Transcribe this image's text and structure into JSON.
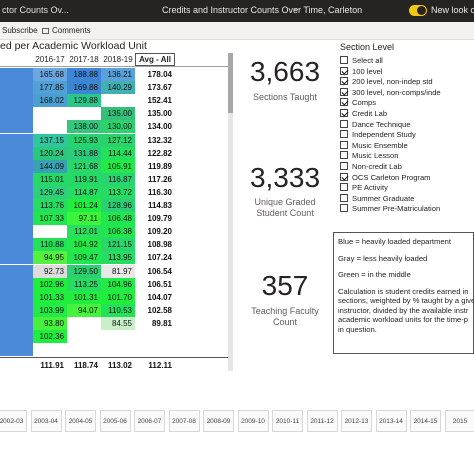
{
  "topbar": {
    "tab_label": "ctor Counts Ov...",
    "report_title": "Credits and Instructor Counts Over Time, Carleton",
    "new_look_label": "New look on"
  },
  "toolbar": {
    "subscribe_label": "Subscribe",
    "comments_label": "Comments"
  },
  "matrix": {
    "title": "ed per Academic Workload Unit",
    "columns": [
      "2016-17",
      "2017-18",
      "2018-19",
      "Avg - All"
    ],
    "rows": [
      {
        "cells": [
          "165.68",
          "188.88",
          "136.21"
        ],
        "colors": [
          "#6aa6e0",
          "#3d85d8",
          "#5aa2dc"
        ],
        "avg": "178.04",
        "lead": "#4b8ad8"
      },
      {
        "cells": [
          "177.85",
          "169.88",
          "140.29"
        ],
        "colors": [
          "#52a0d8",
          "#3b86d0",
          "#42b0b0"
        ],
        "avg": "173.67",
        "lead": "#4b8ad8"
      },
      {
        "cells": [
          "168.02",
          "129.88",
          ""
        ],
        "colors": [
          "#4aa0d2",
          "#27c88a",
          "#ffffff"
        ],
        "avg": "152.41",
        "lead": "#4b8ad8"
      },
      {
        "cells": [
          "",
          "",
          "135.00"
        ],
        "colors": [
          "#ffffff",
          "#ffffff",
          "#34c07a"
        ],
        "avg": "135.00",
        "lead": "#4b8ad8"
      },
      {
        "cells": [
          "",
          "138.00",
          "130.00"
        ],
        "colors": [
          "#ffffff",
          "#36c57c",
          "#2ed26c"
        ],
        "avg": "134.00",
        "lead": "#4b8ad8"
      },
      {
        "cells": [
          "137.15",
          "125.93",
          "127.12"
        ],
        "colors": [
          "#2fc6a0",
          "#25d46e",
          "#2ad26c"
        ],
        "avg": "132.32",
        "lead": "#4b8ad8"
      },
      {
        "cells": [
          "120.24",
          "131.88",
          "114.44"
        ],
        "colors": [
          "#2ac87c",
          "#28cc7a",
          "#25e05a"
        ],
        "avg": "122.82",
        "lead": "#4b8ad8"
      },
      {
        "cells": [
          "144.09",
          "121.68",
          "105.91"
        ],
        "colors": [
          "#36a2b2",
          "#28d66a",
          "#22ea46"
        ],
        "avg": "119.89",
        "lead": "#4b8ad8"
      },
      {
        "cells": [
          "115.01",
          "119.91",
          "116.87"
        ],
        "colors": [
          "#26d866",
          "#26d866",
          "#2ad470"
        ],
        "avg": "117.26",
        "lead": "#4b8ad8"
      },
      {
        "cells": [
          "129.45",
          "114.87",
          "113.72"
        ],
        "colors": [
          "#2ed07c",
          "#26dc62",
          "#26dc62"
        ],
        "avg": "116.30",
        "lead": "#4b8ad8"
      },
      {
        "cells": [
          "113.76",
          "101.24",
          "128.96"
        ],
        "colors": [
          "#28dc60",
          "#20ee3c",
          "#2ad072"
        ],
        "avg": "114.83",
        "lead": "#4b8ad8"
      },
      {
        "cells": [
          "107.33",
          "97.11",
          "106.48"
        ],
        "colors": [
          "#22e650",
          "#3cf43a",
          "#22e650"
        ],
        "avg": "109.79",
        "lead": "#4b8ad8"
      },
      {
        "cells": [
          "",
          "112.01",
          "106.38"
        ],
        "colors": [
          "#ffffff",
          "#28e05c",
          "#22e650"
        ],
        "avg": "109.20",
        "lead": "#4b8ad8"
      },
      {
        "cells": [
          "110.88",
          "104.92",
          "121.15"
        ],
        "colors": [
          "#24e258",
          "#22ea46",
          "#28d66a"
        ],
        "avg": "108.98",
        "lead": "#4b8ad8"
      },
      {
        "cells": [
          "94.95",
          "109.47",
          "113.95"
        ],
        "colors": [
          "#56f040",
          "#22e650",
          "#26dc62"
        ],
        "avg": "107.24",
        "lead": "#4b8ad8"
      },
      {
        "cells": [
          "92.73",
          "129.50",
          "81.97"
        ],
        "colors": [
          "#dcdcdc",
          "#2ad072",
          "#e8e8e8"
        ],
        "avg": "106.54",
        "lead": "#4b8ad8"
      },
      {
        "cells": [
          "102.96",
          "113.25",
          "104.96"
        ],
        "colors": [
          "#20ee3c",
          "#26dc62",
          "#22ea46"
        ],
        "avg": "106.51",
        "lead": "#4b8ad8"
      },
      {
        "cells": [
          "101.33",
          "101.31",
          "101.70"
        ],
        "colors": [
          "#20ee3c",
          "#20ee3c",
          "#20ee3c"
        ],
        "avg": "104.07",
        "lead": "#4b8ad8"
      },
      {
        "cells": [
          "103.99",
          "94.07",
          "110.53"
        ],
        "colors": [
          "#22ea46",
          "#46f23c",
          "#24e258"
        ],
        "avg": "102.58",
        "lead": "#4b8ad8"
      },
      {
        "cells": [
          "93.80",
          "",
          "84.55"
        ],
        "colors": [
          "#48f23c",
          "#ffffff",
          "#c8f0c8"
        ],
        "avg": "89.81",
        "lead": "#4b8ad8"
      },
      {
        "cells": [
          "102.36",
          "",
          ""
        ],
        "colors": [
          "#20ee3c",
          "#ffffff",
          "#ffffff"
        ],
        "avg": "",
        "lead": "#4b8ad8"
      },
      {
        "cells": [
          "",
          "",
          ""
        ],
        "colors": [
          "#ffffff",
          "#ffffff",
          "#ffffff"
        ],
        "avg": "",
        "lead": "#4b8ad8"
      }
    ],
    "total": {
      "cells": [
        "111.91",
        "118.74",
        "113.02"
      ],
      "avg": "112.11"
    }
  },
  "kpis": [
    {
      "value": "3,663",
      "label_lines": [
        "Sections Taught"
      ]
    },
    {
      "value": "3,333",
      "label_lines": [
        "Unique Graded",
        "Student Count"
      ]
    },
    {
      "value": "357",
      "label_lines": [
        "Teaching Faculty",
        "Count"
      ]
    }
  ],
  "slicer": {
    "title": "Section Level",
    "items": [
      {
        "label": "Select all",
        "checked": false
      },
      {
        "label": "100 level",
        "checked": true
      },
      {
        "label": "200 level, non-indep std",
        "checked": true
      },
      {
        "label": "300 level, non-comps/inde",
        "checked": true
      },
      {
        "label": "Comps",
        "checked": true
      },
      {
        "label": "Credit Lab",
        "checked": true
      },
      {
        "label": "Dance Technique",
        "checked": false
      },
      {
        "label": "Independent Study",
        "checked": false
      },
      {
        "label": "Music Ensemble",
        "checked": false
      },
      {
        "label": "Music Lesson",
        "checked": false
      },
      {
        "label": "Non-credit Lab",
        "checked": false
      },
      {
        "label": "OCS Carleton Program",
        "checked": true
      },
      {
        "label": "PE Activity",
        "checked": false
      },
      {
        "label": "Summer Graduate",
        "checked": false
      },
      {
        "label": "Summer Pre-Matriculation",
        "checked": false
      }
    ]
  },
  "note": {
    "blue": "Blue = heavily loaded department",
    "gray": "Gray = less heavily loaded",
    "green": "Green = in the middle",
    "calc_lines": [
      "Calculation is student credits earned in",
      "sections, weighted by % taught by a give",
      "instructor, divided by the available instr",
      "academic workload units for the time-p",
      "in question."
    ]
  },
  "timeline": [
    "2002-03",
    "2003-04",
    "2004-05",
    "2005-06",
    "2006-07",
    "2007-08",
    "2008-09",
    "2009-10",
    "2010-11",
    "2011-12",
    "2012-13",
    "2013-14",
    "2014-15",
    "2015"
  ]
}
